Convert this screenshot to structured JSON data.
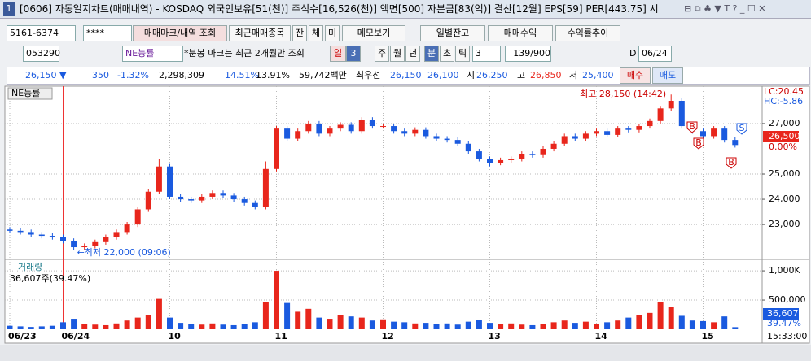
{
  "window": {
    "number": "1",
    "title": "[0606] 자동일지차트(매매내역) - KOSDAQ 외국인보유[51(천)] 주식수[16,526(천)] 액면[500] 자본금[83(억)] 결산[12월] EPS[59] PER[443.75] 시"
  },
  "toolbar1": {
    "account": "5161-6374",
    "password": "****",
    "buttons": [
      "매매마크/내역 조회",
      "최근매매종목",
      "잔",
      "체",
      "미",
      "메모보기",
      "일별잔고",
      "매매수익",
      "수익률추이"
    ]
  },
  "toolbar2": {
    "code": "053290",
    "name": "NE능률",
    "note": "*분봉 마크는 최근 2개월만 조회",
    "periods": [
      "일",
      "3",
      "주",
      "월",
      "년",
      "분",
      "초",
      "틱"
    ],
    "count": "3",
    "range": "139/900",
    "date_label": "D",
    "date": "06/24"
  },
  "quote": {
    "price": "26,150 ▼",
    "change": "350",
    "rate": "-1.32%",
    "volume": "2,298,309",
    "turnover": "14.51%",
    "ratio": "13.91%",
    "amount": "59,742백만",
    "best_label": "최우선",
    "ask": "26,150",
    "bid": "26,100",
    "open_label": "시",
    "open": "26,250",
    "high_label": "고",
    "high": "26,850",
    "low_label": "저",
    "low": "25,400",
    "buy": "매수",
    "sell": "매도"
  },
  "chart_data": [
    {
      "type": "candlestick",
      "legend": "NE능률",
      "categories": [
        "06/23",
        null,
        null,
        null,
        null,
        "06/24",
        null,
        null,
        null,
        null,
        null,
        null,
        null,
        null,
        null,
        "10",
        null,
        null,
        null,
        null,
        null,
        null,
        null,
        null,
        null,
        "11",
        null,
        null,
        null,
        null,
        null,
        null,
        null,
        null,
        null,
        "12",
        null,
        null,
        null,
        null,
        null,
        null,
        null,
        null,
        null,
        "13",
        null,
        null,
        null,
        null,
        null,
        null,
        null,
        null,
        null,
        "14",
        null,
        null,
        null,
        null,
        null,
        null,
        null,
        null,
        null,
        "15",
        null,
        null,
        null
      ],
      "open": [
        22800,
        22750,
        22700,
        22600,
        22550,
        22500,
        22350,
        22100,
        22150,
        22300,
        22500,
        22700,
        23000,
        23600,
        24300,
        25300,
        24100,
        24000,
        23950,
        24100,
        24250,
        24150,
        24000,
        23850,
        23700,
        25200,
        26800,
        26400,
        26700,
        27000,
        26600,
        26800,
        26950,
        26700,
        27150,
        26900,
        26900,
        26700,
        26600,
        26750,
        26500,
        26400,
        26350,
        26200,
        25900,
        25600,
        25450,
        25550,
        25600,
        25800,
        25750,
        26000,
        26200,
        26500,
        26400,
        26600,
        26700,
        26550,
        26800,
        26750,
        26900,
        27100,
        27600,
        27900,
        26900,
        26700,
        26500,
        26800,
        26350
      ],
      "high": [
        22900,
        22850,
        22800,
        22700,
        22650,
        22600,
        22450,
        22250,
        22400,
        22600,
        22800,
        23100,
        23700,
        24400,
        25600,
        25400,
        24200,
        24100,
        24200,
        24350,
        24350,
        24250,
        24100,
        23950,
        25500,
        26900,
        26900,
        26800,
        27100,
        27100,
        26900,
        27050,
        27050,
        27250,
        27250,
        27000,
        27000,
        26800,
        26850,
        26850,
        26600,
        26500,
        26450,
        26300,
        26000,
        25700,
        25650,
        25700,
        25900,
        25900,
        26100,
        26300,
        26600,
        26600,
        26700,
        26800,
        26800,
        26900,
        26900,
        27000,
        27200,
        27700,
        28150,
        28000,
        27000,
        26800,
        26900,
        26900,
        26450
      ],
      "low": [
        22650,
        22600,
        22500,
        22450,
        22400,
        22250,
        22000,
        22000,
        22050,
        22200,
        22400,
        22600,
        22900,
        23500,
        24200,
        24000,
        23900,
        23850,
        23850,
        24000,
        24050,
        23900,
        23750,
        23600,
        23600,
        25100,
        26300,
        26300,
        26600,
        26500,
        26500,
        26700,
        26600,
        26600,
        26800,
        26800,
        26600,
        26500,
        26500,
        26400,
        26300,
        26250,
        26100,
        25800,
        25500,
        25300,
        25350,
        25450,
        25500,
        25650,
        25650,
        25900,
        26100,
        26300,
        26300,
        26500,
        26450,
        26450,
        26650,
        26650,
        26800,
        27000,
        27500,
        26800,
        26600,
        26400,
        26400,
        26250,
        26050
      ],
      "close": [
        22750,
        22700,
        22600,
        22550,
        22500,
        22350,
        22100,
        22150,
        22300,
        22500,
        22700,
        23000,
        23600,
        24300,
        25300,
        24100,
        24000,
        23950,
        24100,
        24250,
        24150,
        24000,
        23850,
        23700,
        25200,
        26800,
        26400,
        26700,
        27000,
        26600,
        26800,
        26950,
        26700,
        27150,
        26900,
        26900,
        26700,
        26600,
        26750,
        26500,
        26400,
        26350,
        26200,
        25900,
        25600,
        25450,
        25550,
        25600,
        25800,
        25750,
        26000,
        26200,
        26500,
        26400,
        26600,
        26700,
        26550,
        26800,
        26750,
        26900,
        27100,
        27600,
        27900,
        26900,
        26700,
        26500,
        26800,
        26350,
        26150
      ],
      "up_color": "#e8261c",
      "down_color": "#1a5adf",
      "ylim": [
        21650,
        28480
      ],
      "yticks": [
        {
          "value": 23000,
          "label": "23,000"
        },
        {
          "value": 24000,
          "label": "24,000"
        },
        {
          "value": 25000,
          "label": "25,000"
        },
        {
          "value": 27000,
          "label": "27,000"
        }
      ],
      "grid": true,
      "annotations": {
        "max": "최고 28,150 (14:42)",
        "min": "←최저 22,000 (09:06)",
        "lc": "LC:20.45",
        "hc": "HC:-5.86",
        "price_tag": "26,500",
        "rate_tag": "0.00%",
        "buy_marker": "B",
        "sell_marker": "S"
      },
      "time": "15:33:00"
    },
    {
      "type": "bar",
      "legend": "거래량",
      "subtitle": "36,607주(39.47%)",
      "values": [
        60000,
        50000,
        40000,
        50000,
        60000,
        120000,
        180000,
        90000,
        80000,
        70000,
        100000,
        150000,
        200000,
        250000,
        520000,
        200000,
        110000,
        90000,
        80000,
        100000,
        80000,
        70000,
        90000,
        120000,
        460000,
        1000000,
        450000,
        300000,
        350000,
        200000,
        180000,
        250000,
        220000,
        200000,
        150000,
        170000,
        130000,
        120000,
        100000,
        110000,
        90000,
        100000,
        80000,
        130000,
        160000,
        110000,
        90000,
        100000,
        80000,
        70000,
        90000,
        120000,
        150000,
        110000,
        130000,
        90000,
        120000,
        150000,
        200000,
        250000,
        280000,
        460000,
        380000,
        230000,
        150000,
        140000,
        120000,
        220000,
        36607
      ],
      "ylim": [
        0,
        1140000
      ],
      "yticks": [
        {
          "value": 500000,
          "label": "500,000"
        },
        {
          "value": 1000000,
          "label": "1,000K"
        }
      ],
      "tags": {
        "volume": "36,607",
        "rate": "39.47%"
      }
    }
  ]
}
